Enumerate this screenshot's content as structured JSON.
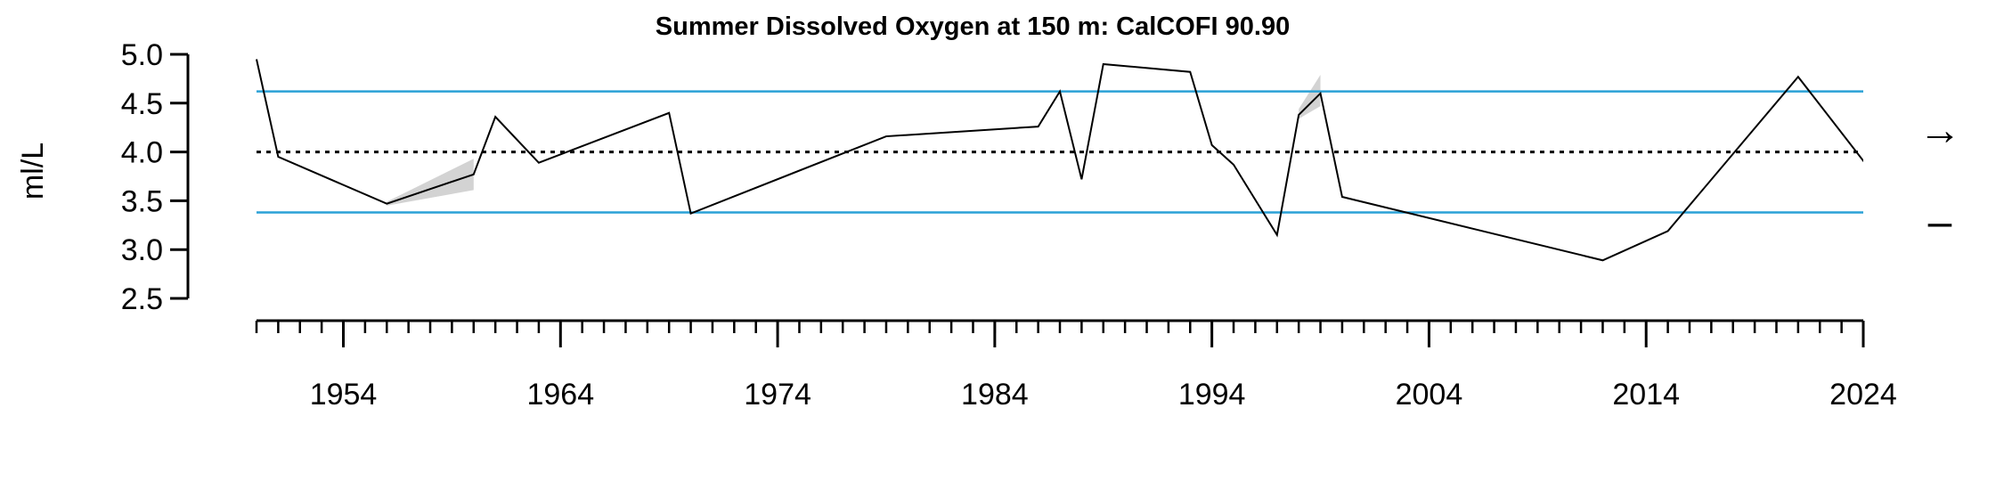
{
  "chart_data": {
    "type": "line",
    "title": "Summer Dissolved Oxygen at 150 m: CalCOFI 90.90",
    "ylabel": "ml/L",
    "xlabel": "",
    "ylim": [
      2.5,
      5.0
    ],
    "xlim": [
      1950,
      2024
    ],
    "y_ticks": [
      "2.5",
      "3.0",
      "3.5",
      "4.0",
      "4.5",
      "5.0"
    ],
    "x_ticks": [
      "1954",
      "1964",
      "1974",
      "1984",
      "1994",
      "2004",
      "2014",
      "2024"
    ],
    "x_minor_step": 1,
    "series": [
      {
        "color": "#000000",
        "points": [
          [
            1950,
            4.95
          ],
          [
            1951,
            3.95
          ],
          [
            1956,
            3.47
          ],
          [
            1960,
            3.77
          ],
          [
            1961,
            4.36
          ],
          [
            1963,
            3.89
          ],
          [
            1969,
            4.4
          ],
          [
            1970,
            3.37
          ],
          [
            1979,
            4.16
          ],
          [
            1986,
            4.26
          ],
          [
            1987,
            4.62
          ],
          [
            1988,
            3.72
          ],
          [
            1989,
            4.9
          ],
          [
            1993,
            4.82
          ],
          [
            1994,
            4.07
          ],
          [
            1995,
            3.87
          ],
          [
            1997,
            3.15
          ],
          [
            1998,
            4.38
          ],
          [
            1999,
            4.6
          ],
          [
            2000,
            3.54
          ],
          [
            2012,
            2.89
          ],
          [
            2015,
            3.19
          ],
          [
            2021,
            4.77
          ],
          [
            2027,
            3.05
          ]
        ]
      }
    ],
    "uncertainty_bands": [
      {
        "color": "#d3d3d3",
        "x": [
          1956,
          1960
        ],
        "upper": [
          3.49,
          3.93
        ],
        "lower": [
          3.45,
          3.61
        ]
      },
      {
        "color": "#d3d3d3",
        "x": [
          1998,
          1999
        ],
        "upper": [
          4.44,
          4.79
        ],
        "lower": [
          4.34,
          4.47
        ]
      }
    ],
    "reference_lines": [
      {
        "y": 4.62,
        "style": "solid",
        "color": "#2aa1d6"
      },
      {
        "y": 4.0,
        "style": "dotted",
        "color": "#000000"
      },
      {
        "y": 3.38,
        "style": "solid",
        "color": "#2aa1d6"
      }
    ],
    "indicators": {
      "trend": "→",
      "status": "–"
    },
    "grid": false,
    "legend": "none"
  }
}
